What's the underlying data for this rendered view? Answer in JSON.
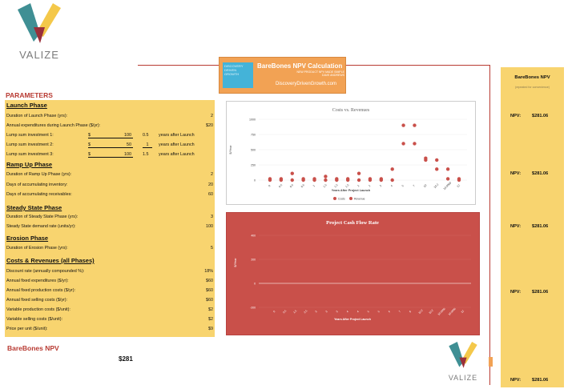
{
  "brand": {
    "logo_text": "VALIZE",
    "colors": {
      "teal": "#3f8f94",
      "yellow": "#f4c84a",
      "maroon": "#9a2f3a"
    }
  },
  "banner": {
    "title": "BareBones NPV Calculation",
    "subtitle": "NEW PRODUCT NPV MADE SIMPLE",
    "author": "DAVE ANDREWS",
    "url": "DiscoveryDrivenGrowth.com",
    "thumb_text": "DISCOVERY DRIVEN GROWTH"
  },
  "params": {
    "title": "PARAMETERS",
    "launch": {
      "heading": "Launch Phase",
      "duration_label": "Duration of Launch Phase (yrs):",
      "duration_value": "2",
      "annual_label": "Annual expenditures during Launch Phase ($/yr):",
      "annual_value": "$20",
      "lumps": [
        {
          "label": "Lump sum investment 1:",
          "currency": "$",
          "amount": "100",
          "year": "0.5",
          "suffix": "years after Launch"
        },
        {
          "label": "Lump sum investment 2:",
          "currency": "$",
          "amount": "50",
          "year": "1",
          "suffix": "years after Launch"
        },
        {
          "label": "Lump sum investment 3:",
          "currency": "$",
          "amount": "100",
          "year": "1.5",
          "suffix": "years after Launch"
        }
      ]
    },
    "rampup": {
      "heading": "Ramp Up Phase",
      "rows": [
        {
          "label": "Duration of Ramp Up Phase (yrs):",
          "value": "2"
        },
        {
          "label": "Days of accumulating inventory:",
          "value": "20"
        },
        {
          "label": "Days of accumulating receivables:",
          "value": "60"
        }
      ]
    },
    "steady": {
      "heading": "Steady State Phase",
      "rows": [
        {
          "label": "Duration of Steady State Phase (yrs):",
          "value": "3"
        },
        {
          "label": "Steady State demand rate (units/yr):",
          "value": "100"
        }
      ]
    },
    "erosion": {
      "heading": "Erosion Phase",
      "rows": [
        {
          "label": "Duration of Erosion Phase (yrs):",
          "value": "5"
        }
      ]
    },
    "costs": {
      "heading": "Costs & Revenues (all Phases)",
      "rows": [
        {
          "label": "Discount rate (annually compounded %):",
          "value": "18%"
        },
        {
          "label": "Annual fixed expenditures ($/yr):",
          "value": "$60"
        },
        {
          "label": "Annual fixed production costs ($/yr):",
          "value": "$60"
        },
        {
          "label": "Annual fixed selling costs ($/yr):",
          "value": "$60"
        },
        {
          "label": "Variable production costs ($/unit):",
          "value": "$2"
        },
        {
          "label": "Variable selling costs ($/unit):",
          "value": "$2"
        },
        {
          "label": "Price per unit ($/unit):",
          "value": "$9"
        }
      ]
    }
  },
  "npv": {
    "label": "BareBones NPV",
    "value": "$281"
  },
  "right_panel": {
    "title": "BareBones NPV",
    "subtitle": "(repeated for convenience)",
    "rows": [
      {
        "label": "NPV:",
        "value": "$281.06"
      },
      {
        "label": "NPV:",
        "value": "$281.06"
      },
      {
        "label": "NPV:",
        "value": "$281.06"
      },
      {
        "label": "NPV:",
        "value": "$281.06"
      },
      {
        "label": "NPV:",
        "value": "$281.06"
      }
    ]
  },
  "chart_data": [
    {
      "type": "scatter",
      "title": "Costs vs. Revenues",
      "xlabel": "Years After Project Launch",
      "ylabel": "$/Year",
      "ylim": [
        0,
        1000
      ],
      "yticks": [
        "1000",
        "750",
        "500",
        "250",
        "0"
      ],
      "categories": [
        "0",
        "0.5",
        "0.5",
        "0.5",
        "1",
        "1.5",
        "1.5",
        "1.5",
        "2",
        "2",
        "3",
        "4",
        "5",
        "7",
        "10",
        "10.2",
        "10.0000",
        "12"
      ],
      "series": [
        {
          "name": "Costs",
          "color": "#c9504a",
          "values": [
            20,
            20,
            110,
            20,
            20,
            60,
            20,
            20,
            110,
            20,
            20,
            180,
            600,
            600,
            330,
            330,
            20,
            20
          ]
        },
        {
          "name": "Revenues",
          "color": "#c9504a",
          "values": [
            0,
            0,
            0,
            0,
            0,
            0,
            0,
            0,
            0,
            0,
            0,
            0,
            900,
            900,
            360,
            180,
            180,
            0
          ]
        }
      ],
      "legend": [
        "Costs",
        "Revenue"
      ],
      "legend_position": "bottom"
    },
    {
      "type": "line",
      "title": "Project Cash Flow Rate",
      "xlabel": "Years After Project Launch",
      "ylabel": "$/Year",
      "ylim": [
        -200,
        400
      ],
      "yticks": [
        "400",
        "200",
        "0",
        "-200"
      ],
      "categories": [
        "0",
        "0.5",
        "1.5",
        "2.5",
        "3",
        "3",
        "3",
        "4",
        "4",
        "5",
        "5",
        "6",
        "7",
        "8",
        "10.2",
        "10.2",
        "10.0000",
        "10.0000",
        "12"
      ]
    }
  ]
}
